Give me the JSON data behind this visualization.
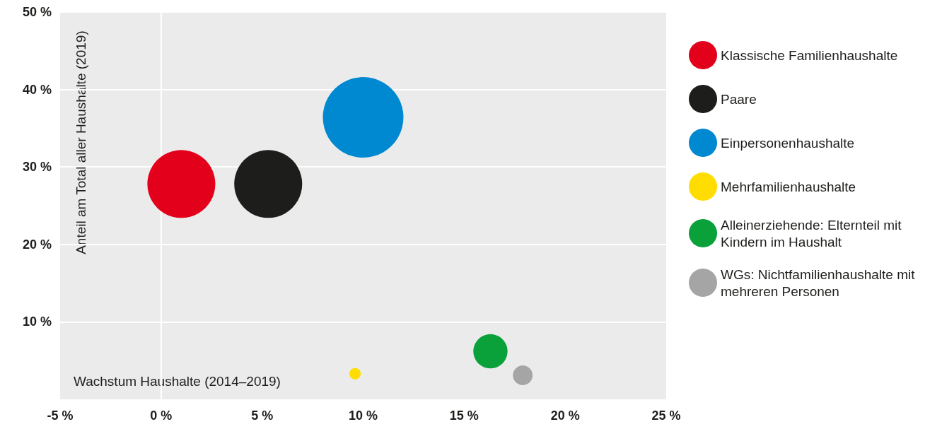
{
  "chart_data": {
    "type": "bubble",
    "xlabel": "Wachstum Haushalte (2014–2019)",
    "ylabel": "Anteil am Total aller Haushalte (2019)",
    "xlim": [
      -5,
      25
    ],
    "xticks": [
      {
        "value": -5,
        "label": "-5 %"
      },
      {
        "value": 0,
        "label": "0 %"
      },
      {
        "value": 5,
        "label": "5 %"
      },
      {
        "value": 10,
        "label": "10 %"
      },
      {
        "value": 15,
        "label": "15 %"
      },
      {
        "value": 20,
        "label": "20 %"
      },
      {
        "value": 25,
        "label": "25 %"
      }
    ],
    "ylim": [
      0,
      50
    ],
    "yticks": [
      {
        "value": 10,
        "label": "10 %"
      },
      {
        "value": 20,
        "label": "20 %"
      },
      {
        "value": 30,
        "label": "30 %"
      },
      {
        "value": 40,
        "label": "40 %"
      },
      {
        "value": 50,
        "label": "50 %"
      }
    ],
    "grid": "y",
    "legend": "right",
    "ref_lines": [
      {
        "axis": "x",
        "value": 0,
        "color": "#ffffff"
      }
    ],
    "series": [
      {
        "name": "Klassische Familienhaushalte",
        "color": "#e2001a",
        "x": [
          1.0
        ],
        "values": [
          27.8
        ],
        "sizes": [
          0.71
        ]
      },
      {
        "name": "Paare",
        "color": "#1d1d1b",
        "x": [
          5.3
        ],
        "values": [
          27.8
        ],
        "sizes": [
          0.71
        ]
      },
      {
        "name": "Einpersonenhaushalte",
        "color": "#0088d1",
        "x": [
          10.0
        ],
        "values": [
          36.4
        ],
        "sizes": [
          1
        ]
      },
      {
        "name": "Mehrfamilienhaushalte",
        "color": "#ffdd00",
        "x": [
          9.6
        ],
        "values": [
          3.3
        ],
        "sizes": [
          0.02
        ]
      },
      {
        "name": "Alleinerziehende: Elternteil mit Kindern im Haushalt",
        "color": "#0aa13b",
        "x": [
          16.3
        ],
        "values": [
          6.2
        ],
        "sizes": [
          0.18
        ]
      },
      {
        "name": "WGs: Nichtfamilienhaushalte mit mehreren Personen",
        "color": "#a5a5a5",
        "x": [
          17.9
        ],
        "values": [
          3.1
        ],
        "sizes": [
          0.06
        ]
      }
    ]
  }
}
